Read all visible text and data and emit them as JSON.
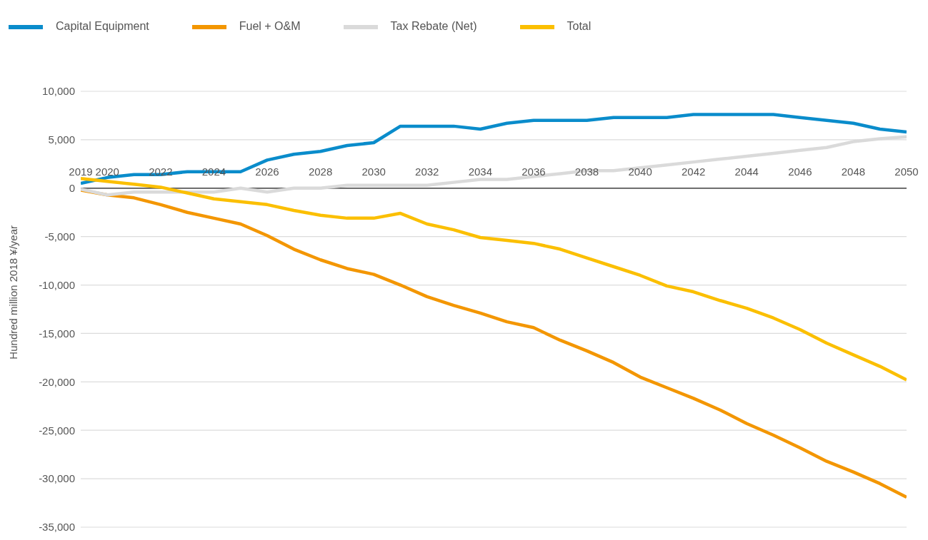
{
  "chart_data": {
    "type": "line",
    "ylabel": "Hundred million 2018 ¥/year",
    "x": [
      2019,
      2020,
      2021,
      2022,
      2023,
      2024,
      2025,
      2026,
      2027,
      2028,
      2029,
      2030,
      2031,
      2032,
      2033,
      2034,
      2035,
      2036,
      2037,
      2038,
      2039,
      2040,
      2041,
      2042,
      2043,
      2044,
      2045,
      2046,
      2047,
      2048,
      2049,
      2050
    ],
    "xlim": [
      2019,
      2050
    ],
    "xticks": [
      2019,
      2020,
      2022,
      2024,
      2026,
      2028,
      2030,
      2032,
      2034,
      2036,
      2038,
      2040,
      2042,
      2044,
      2046,
      2048,
      2050
    ],
    "ylim": [
      -35000,
      10000
    ],
    "yticks": [
      {
        "value": -35000,
        "label": "-35,000"
      },
      {
        "value": -30000,
        "label": "-30,000"
      },
      {
        "value": -25000,
        "label": "-25,000"
      },
      {
        "value": -20000,
        "label": "-20,000"
      },
      {
        "value": -15000,
        "label": "-15,000"
      },
      {
        "value": -10000,
        "label": "-10,000"
      },
      {
        "value": -5000,
        "label": "-5,000"
      },
      0,
      {
        "value": 5000,
        "label": "5,000"
      },
      {
        "value": 10000,
        "label": "10,000"
      }
    ],
    "grid": "y",
    "legend": "top left",
    "marker": "none",
    "line_style": "solid",
    "series": [
      {
        "name": "Capital Equipment",
        "color": "#0a8ccb",
        "values": [
          500,
          1100,
          1400,
          1400,
          1700,
          1700,
          1700,
          2900,
          3500,
          3800,
          4400,
          4700,
          6400,
          6400,
          6400,
          6100,
          6700,
          7000,
          7000,
          7000,
          7300,
          7300,
          7300,
          7600,
          7600,
          7600,
          7600,
          7300,
          7000,
          6700,
          6100,
          5800
        ]
      },
      {
        "name": "Fuel + O&M",
        "color": "#f39600",
        "values": [
          -200,
          -700,
          -1000,
          -1700,
          -2500,
          -3100,
          -3700,
          -4900,
          -6300,
          -7400,
          -8300,
          -8900,
          -10000,
          -11200,
          -12100,
          -12900,
          -13800,
          -14400,
          -15700,
          -16800,
          -18000,
          -19500,
          -20600,
          -21700,
          -22900,
          -24300,
          -25500,
          -26800,
          -28200,
          -29300,
          -30500,
          -31900
        ]
      },
      {
        "name": "Tax Rebate (Net)",
        "color": "#dadada",
        "values": [
          -100,
          -700,
          -400,
          -400,
          -400,
          -400,
          0,
          -400,
          0,
          0,
          300,
          300,
          300,
          300,
          600,
          900,
          900,
          1200,
          1500,
          1800,
          1800,
          2100,
          2400,
          2700,
          3000,
          3300,
          3600,
          3900,
          4200,
          4800,
          5100,
          5300
        ]
      },
      {
        "name": "Total",
        "color": "#fbbf00",
        "values": [
          1000,
          700,
          400,
          100,
          -500,
          -1100,
          -1400,
          -1700,
          -2300,
          -2800,
          -3100,
          -3100,
          -2600,
          -3700,
          -4300,
          -5100,
          -5400,
          -5700,
          -6300,
          -7200,
          -8100,
          -9000,
          -10100,
          -10700,
          -11600,
          -12400,
          -13400,
          -14600,
          -16000,
          -17200,
          -18400,
          -19800
        ]
      }
    ]
  }
}
